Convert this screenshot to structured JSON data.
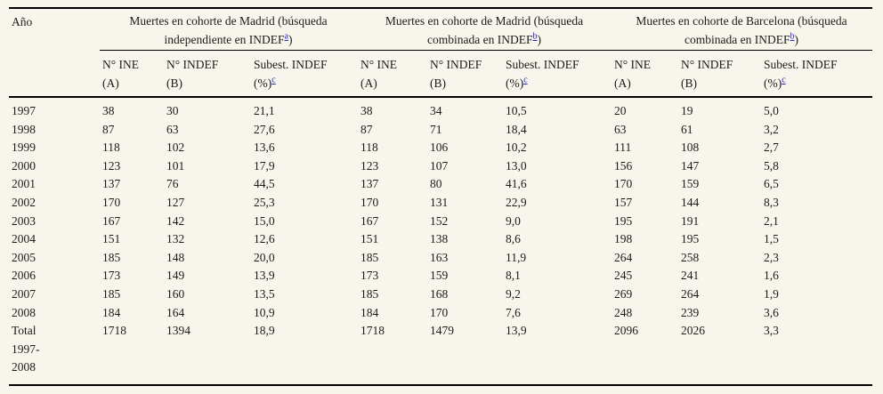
{
  "table": {
    "year_col_header": "Año",
    "groups": [
      {
        "pre": "Muertes en cohorte de Madrid (búsqueda independiente en INDEF",
        "sup": "a",
        "post": ")"
      },
      {
        "pre": "Muertes en cohorte de Madrid (búsqueda combinada en INDEF",
        "sup": "b",
        "post": ")"
      },
      {
        "pre": "Muertes en cohorte de Barcelona (búsqueda combinada en INDEF",
        "sup": "b",
        "post": ")"
      }
    ],
    "subheaders": [
      {
        "line1": "N° INE",
        "line2": "(A)"
      },
      {
        "line1": "N° INDEF",
        "line2": "(B)"
      },
      {
        "line1": "Subest. INDEF",
        "line2_pre": "(%)",
        "line2_sup": "c"
      }
    ],
    "rows": [
      {
        "year": "1997",
        "values": [
          "38",
          "30",
          "21,1",
          "38",
          "34",
          "10,5",
          "20",
          "19",
          "5,0"
        ]
      },
      {
        "year": "1998",
        "values": [
          "87",
          "63",
          "27,6",
          "87",
          "71",
          "18,4",
          "63",
          "61",
          "3,2"
        ]
      },
      {
        "year": "1999",
        "values": [
          "118",
          "102",
          "13,6",
          "118",
          "106",
          "10,2",
          "111",
          "108",
          "2,7"
        ]
      },
      {
        "year": "2000",
        "values": [
          "123",
          "101",
          "17,9",
          "123",
          "107",
          "13,0",
          "156",
          "147",
          "5,8"
        ]
      },
      {
        "year": "2001",
        "values": [
          "137",
          "76",
          "44,5",
          "137",
          "80",
          "41,6",
          "170",
          "159",
          "6,5"
        ]
      },
      {
        "year": "2002",
        "values": [
          "170",
          "127",
          "25,3",
          "170",
          "131",
          "22,9",
          "157",
          "144",
          "8,3"
        ]
      },
      {
        "year": "2003",
        "values": [
          "167",
          "142",
          "15,0",
          "167",
          "152",
          "9,0",
          "195",
          "191",
          "2,1"
        ]
      },
      {
        "year": "2004",
        "values": [
          "151",
          "132",
          "12,6",
          "151",
          "138",
          "8,6",
          "198",
          "195",
          "1,5"
        ]
      },
      {
        "year": "2005",
        "values": [
          "185",
          "148",
          "20,0",
          "185",
          "163",
          "11,9",
          "264",
          "258",
          "2,3"
        ]
      },
      {
        "year": "2006",
        "values": [
          "173",
          "149",
          "13,9",
          "173",
          "159",
          "8,1",
          "245",
          "241",
          "1,6"
        ]
      },
      {
        "year": "2007",
        "values": [
          "185",
          "160",
          "13,5",
          "185",
          "168",
          "9,2",
          "269",
          "264",
          "1,9"
        ]
      },
      {
        "year": "2008",
        "values": [
          "184",
          "164",
          "10,9",
          "184",
          "170",
          "7,6",
          "248",
          "239",
          "3,6"
        ]
      },
      {
        "year": "Total\n1997-\n2008",
        "values": [
          "1718",
          "1394",
          "18,9",
          "1718",
          "1479",
          "13,9",
          "2096",
          "2026",
          "3,3"
        ]
      }
    ],
    "colors": {
      "background": "#f8f5ec",
      "text": "#1b1b1b",
      "footnote_link": "#2323cd",
      "rule": "#000000"
    }
  }
}
